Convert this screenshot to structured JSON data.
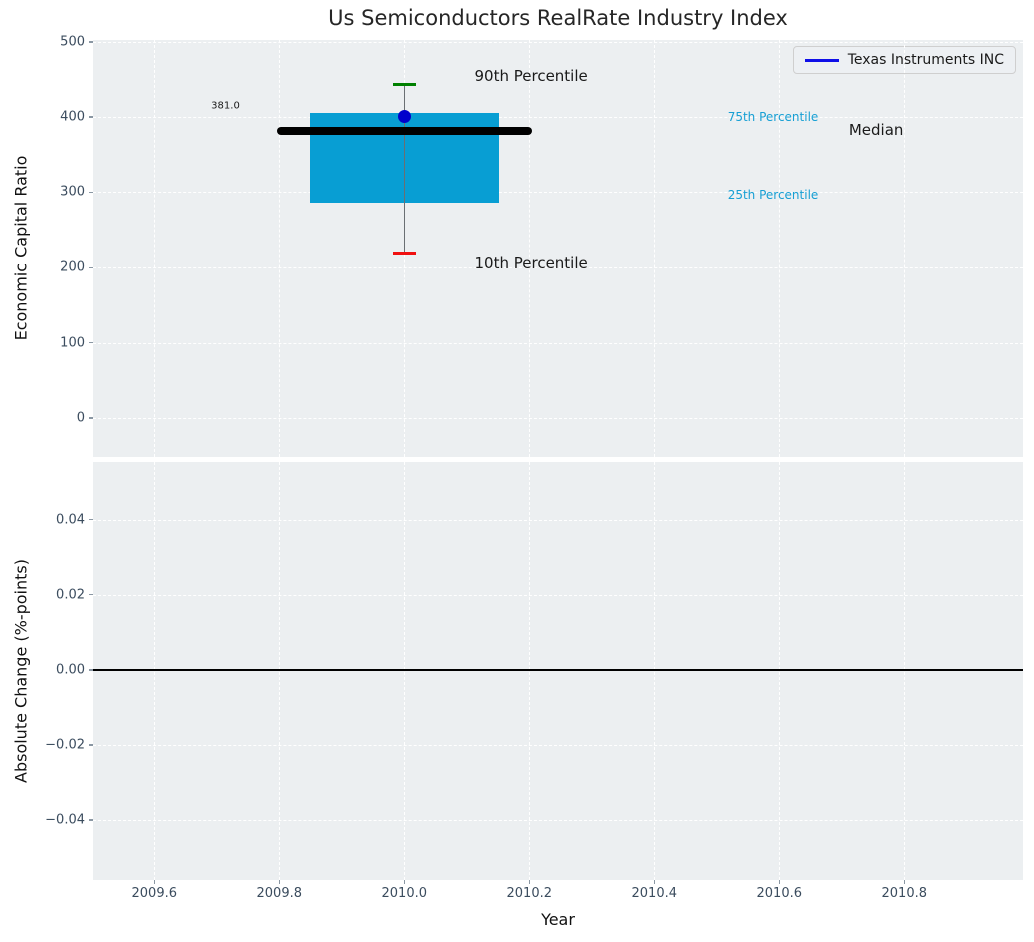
{
  "title": "Us Semiconductors RealRate Industry Index",
  "legend": {
    "label": "Texas Instruments INC",
    "line_color": "#0f0fe8"
  },
  "colors": {
    "plot_background": "#eceff1",
    "grid": "#ffffff",
    "box_fill": "#089ed3",
    "percentile_label": "#169fd4",
    "median_line": "#000000",
    "whisker": "#6a6f73",
    "cap_high": "#008000",
    "cap_low": "#f01010",
    "company_point": "#0000cc",
    "tick_text": "#3b4c5e",
    "annotation_text": "#1a1a1a"
  },
  "chart_data": [
    {
      "type": "boxplot",
      "title": "Us Semiconductors RealRate Industry Index",
      "ylabel": "Economic Capital Ratio",
      "ylim": [
        -52.2,
        502.6
      ],
      "xlim": [
        2009.502,
        2010.99
      ],
      "grid": true,
      "yticks": [
        {
          "v": 0,
          "label": "0"
        },
        {
          "v": 100,
          "label": "100"
        },
        {
          "v": 200,
          "label": "200"
        },
        {
          "v": 300,
          "label": "300"
        },
        {
          "v": 400,
          "label": "400"
        },
        {
          "v": 500,
          "label": "500"
        }
      ],
      "box": {
        "x": 2010.0,
        "median": 381.0,
        "q1": 286,
        "q3": 406,
        "p10": 218,
        "p90": 443,
        "box_halfwidth": 0.151,
        "median_halfwidth": 0.204,
        "cap_halfwidth": 0.018,
        "company_point": {
          "name": "Texas Instruments INC",
          "x": 2010.0,
          "value": 401
        }
      },
      "annotations": [
        {
          "text": "381.0",
          "x": 2009.714,
          "y": 415,
          "size": 10,
          "color": "#1a1a1a"
        },
        {
          "text": "90th Percentile",
          "x": 2010.203,
          "y": 455,
          "size": 15,
          "color": "#1a1a1a"
        },
        {
          "text": "10th Percentile",
          "x": 2010.203,
          "y": 206,
          "size": 15,
          "color": "#1a1a1a"
        },
        {
          "text": "75th Percentile",
          "x": 2010.59,
          "y": 400,
          "size": 12,
          "color": "#169fd4"
        },
        {
          "text": "25th Percentile",
          "x": 2010.59,
          "y": 296,
          "size": 12,
          "color": "#169fd4"
        },
        {
          "text": "Median",
          "x": 2010.755,
          "y": 383,
          "size": 15,
          "color": "#1a1a1a"
        }
      ],
      "legend_entries": [
        {
          "label": "Texas Instruments INC",
          "color": "#0f0fe8"
        }
      ]
    },
    {
      "type": "line",
      "ylabel": "Absolute Change (%-points)",
      "xlabel": "Year",
      "ylim": [
        -0.0559,
        0.0553
      ],
      "xlim": [
        2009.502,
        2010.99
      ],
      "grid": true,
      "zero_line": 0.0,
      "yticks": [
        {
          "v": 0.04,
          "label": "0.04"
        },
        {
          "v": 0.02,
          "label": "0.02"
        },
        {
          "v": 0.0,
          "label": "0.00"
        },
        {
          "v": -0.02,
          "label": "−0.02"
        },
        {
          "v": -0.04,
          "label": "−0.04"
        }
      ],
      "xticks": [
        {
          "v": 2009.6,
          "label": "2009.6"
        },
        {
          "v": 2009.8,
          "label": "2009.8"
        },
        {
          "v": 2010.0,
          "label": "2010.0"
        },
        {
          "v": 2010.2,
          "label": "2010.2"
        },
        {
          "v": 2010.4,
          "label": "2010.4"
        },
        {
          "v": 2010.6,
          "label": "2010.6"
        },
        {
          "v": 2010.8,
          "label": "2010.8"
        }
      ]
    }
  ]
}
